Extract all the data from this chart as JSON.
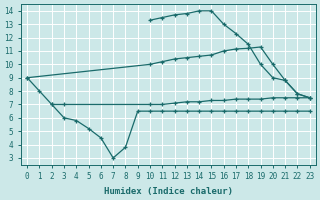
{
  "xlabel": "Humidex (Indice chaleur)",
  "xlim": [
    -0.5,
    23.5
  ],
  "ylim": [
    2.5,
    14.5
  ],
  "xticks": [
    0,
    1,
    2,
    3,
    4,
    5,
    6,
    7,
    8,
    9,
    10,
    11,
    12,
    13,
    14,
    15,
    16,
    17,
    18,
    19,
    20,
    21,
    22,
    23
  ],
  "yticks": [
    3,
    4,
    5,
    6,
    7,
    8,
    9,
    10,
    11,
    12,
    13,
    14
  ],
  "bg_color": "#cce8e8",
  "grid_color": "#ffffff",
  "line_color": "#1a6b6b",
  "line_top": {
    "x": [
      10,
      11,
      12,
      13,
      14,
      15,
      16,
      17,
      18,
      19,
      20,
      21,
      22,
      23
    ],
    "y": [
      13.3,
      13.5,
      13.7,
      13.8,
      14.0,
      14.0,
      13.0,
      12.3,
      11.5,
      10.0,
      9.0,
      8.8,
      7.8,
      7.5
    ]
  },
  "line_upper_mid": {
    "x": [
      0,
      10,
      11,
      12,
      13,
      14,
      15,
      16,
      17,
      18,
      19,
      20,
      21,
      22,
      23
    ],
    "y": [
      9.0,
      10.0,
      10.2,
      10.4,
      10.5,
      10.6,
      10.7,
      11.0,
      11.15,
      11.2,
      11.3,
      10.0,
      8.8,
      7.8,
      7.5
    ]
  },
  "line_lower_mid": {
    "x": [
      0,
      1,
      2,
      3,
      10,
      11,
      12,
      13,
      14,
      15,
      16,
      17,
      18,
      19,
      20,
      21,
      22,
      23
    ],
    "y": [
      9.0,
      8.0,
      7.0,
      7.0,
      7.0,
      7.0,
      7.1,
      7.2,
      7.2,
      7.3,
      7.3,
      7.4,
      7.4,
      7.4,
      7.5,
      7.5,
      7.5,
      7.5
    ]
  },
  "line_bottom": {
    "x": [
      2,
      3,
      4,
      5,
      6,
      7,
      8,
      9,
      10,
      11,
      12,
      13,
      14,
      15,
      16,
      17,
      18,
      19,
      20,
      21,
      22,
      23
    ],
    "y": [
      7.0,
      6.0,
      5.8,
      5.2,
      4.5,
      3.0,
      3.8,
      6.5,
      6.5,
      6.5,
      6.5,
      6.5,
      6.5,
      6.5,
      6.5,
      6.5,
      6.5,
      6.5,
      6.5,
      6.5,
      6.5,
      6.5
    ]
  }
}
